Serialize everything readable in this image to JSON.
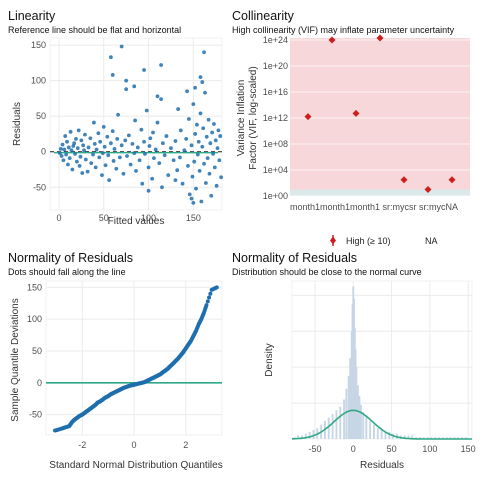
{
  "panels": {
    "linearity": {
      "title": "Linearity",
      "subtitle": "Reference line should be flat and horizontal",
      "xlabel": "Fitted values",
      "ylabel": "Residuals"
    },
    "collinearity": {
      "title": "Collinearity",
      "subtitle": "High collinearity (VIF) may inflate parameter uncertainty",
      "ylabel_line1": "Variance Inflation",
      "ylabel_line2": "Factor (VIF, log-scaled)",
      "x_ticks_text": "month1month1month1 sr:mycsr sr:mycNA",
      "legend": [
        {
          "label": "High (≥ 10)",
          "color": "#cc1f1f"
        },
        {
          "label": "NA",
          "color": "#999999"
        }
      ]
    },
    "qq": {
      "title": "Normality of Residuals",
      "subtitle": "Dots should fall along the line",
      "xlabel": "Standard Normal Distribution Quantiles",
      "ylabel": "Sample Quantile Deviations"
    },
    "density": {
      "title": "Normality of Residuals",
      "subtitle": "Distribution should be close to the normal curve",
      "xlabel": "Residuals",
      "ylabel": "Density"
    }
  },
  "colors": {
    "points": "#1f6fae",
    "reference_line": "#2ea886",
    "vif_high": "#cc1f1f",
    "vif_band": "#f7d7d9",
    "vif_low_band": "#dbe9ea",
    "histogram": "#c7d6e5",
    "grid": "#ebebeb"
  },
  "chart_data": [
    {
      "type": "scatter",
      "title": "Linearity",
      "xlabel": "Fitted values",
      "ylabel": "Residuals",
      "xlim": [
        -10,
        182
      ],
      "ylim": [
        -82,
        160
      ],
      "x_ticks": [
        0,
        50,
        100,
        150
      ],
      "y_ticks": [
        -50,
        0,
        50,
        100,
        150
      ],
      "reference_line": 0,
      "points": [
        [
          1,
          -2
        ],
        [
          2,
          4
        ],
        [
          3,
          -6
        ],
        [
          4,
          10
        ],
        [
          5,
          -12
        ],
        [
          6,
          3
        ],
        [
          7,
          22
        ],
        [
          8,
          -4
        ],
        [
          9,
          14
        ],
        [
          10,
          -18
        ],
        [
          11,
          6
        ],
        [
          12,
          -9
        ],
        [
          13,
          28
        ],
        [
          14,
          2
        ],
        [
          15,
          -25
        ],
        [
          16,
          8
        ],
        [
          17,
          12
        ],
        [
          18,
          -3
        ],
        [
          19,
          18
        ],
        [
          20,
          -14
        ],
        [
          21,
          5
        ],
        [
          22,
          30
        ],
        [
          23,
          -20
        ],
        [
          24,
          -7
        ],
        [
          25,
          16
        ],
        [
          26,
          -30
        ],
        [
          27,
          9
        ],
        [
          28,
          2
        ],
        [
          29,
          24
        ],
        [
          30,
          -11
        ],
        [
          32,
          -28
        ],
        [
          33,
          6
        ],
        [
          35,
          19
        ],
        [
          36,
          -16
        ],
        [
          38,
          -4
        ],
        [
          39,
          41
        ],
        [
          40,
          11
        ],
        [
          41,
          -22
        ],
        [
          42,
          3
        ],
        [
          44,
          26
        ],
        [
          45,
          -8
        ],
        [
          46,
          14
        ],
        [
          48,
          -33
        ],
        [
          49,
          -2
        ],
        [
          50,
          35
        ],
        [
          51,
          7
        ],
        [
          52,
          -19
        ],
        [
          54,
          21
        ],
        [
          55,
          -5
        ],
        [
          56,
          -40
        ],
        [
          58,
          12
        ],
        [
          60,
          29
        ],
        [
          61,
          -13
        ],
        [
          62,
          4
        ],
        [
          64,
          -24
        ],
        [
          65,
          18
        ],
        [
          66,
          52
        ],
        [
          68,
          -8
        ],
        [
          70,
          9
        ],
        [
          72,
          -31
        ],
        [
          74,
          16
        ],
        [
          75,
          88
        ],
        [
          76,
          -6
        ],
        [
          78,
          23
        ],
        [
          80,
          -18
        ],
        [
          82,
          11
        ],
        [
          84,
          -2
        ],
        [
          85,
          44
        ],
        [
          86,
          -27
        ],
        [
          88,
          6
        ],
        [
          90,
          -12
        ],
        [
          92,
          31
        ],
        [
          93,
          -45
        ],
        [
          95,
          14
        ],
        [
          96,
          -3
        ],
        [
          98,
          58
        ],
        [
          100,
          -22
        ],
        [
          101,
          8
        ],
        [
          102,
          19
        ],
        [
          104,
          -38
        ],
        [
          105,
          27
        ],
        [
          106,
          -9
        ],
        [
          108,
          3
        ],
        [
          110,
          41
        ],
        [
          112,
          -16
        ],
        [
          114,
          74
        ],
        [
          115,
          -50
        ],
        [
          116,
          12
        ],
        [
          118,
          -5
        ],
        [
          120,
          22
        ],
        [
          122,
          -33
        ],
        [
          125,
          5
        ],
        [
          128,
          -12
        ],
        [
          130,
          15
        ],
        [
          132,
          -26
        ],
        [
          133,
          60
        ],
        [
          135,
          -8
        ],
        [
          136,
          30
        ],
        [
          138,
          -45
        ],
        [
          140,
          2
        ],
        [
          142,
          18
        ],
        [
          144,
          -20
        ],
        [
          145,
          46
        ],
        [
          146,
          -60
        ],
        [
          148,
          9
        ],
        [
          149,
          -35
        ],
        [
          150,
          67
        ],
        [
          151,
          -14
        ],
        [
          152,
          25
        ],
        [
          153,
          -52
        ],
        [
          154,
          38
        ],
        [
          155,
          -4
        ],
        [
          156,
          14
        ],
        [
          157,
          -27
        ],
        [
          158,
          54
        ],
        [
          159,
          -70
        ],
        [
          160,
          7
        ],
        [
          161,
          33
        ],
        [
          162,
          -17
        ],
        [
          163,
          83
        ],
        [
          164,
          -44
        ],
        [
          165,
          21
        ],
        [
          166,
          -9
        ],
        [
          167,
          45
        ],
        [
          168,
          -31
        ],
        [
          169,
          12
        ],
        [
          170,
          -62
        ],
        [
          171,
          27
        ],
        [
          172,
          -3
        ],
        [
          173,
          39
        ],
        [
          174,
          -22
        ],
        [
          175,
          16
        ],
        [
          176,
          -48
        ],
        [
          177,
          5
        ],
        [
          178,
          30
        ],
        [
          179,
          -12
        ],
        [
          180,
          22
        ],
        [
          181,
          -36
        ],
        [
          143,
          85
        ],
        [
          160,
          98
        ],
        [
          158,
          105
        ],
        [
          114,
          122
        ],
        [
          95,
          115
        ],
        [
          60,
          108
        ],
        [
          58,
          133
        ],
        [
          75,
          100
        ],
        [
          70,
          148
        ],
        [
          162,
          140
        ],
        [
          84,
          92
        ],
        [
          110,
          78
        ],
        [
          130,
          -40
        ],
        [
          148,
          -66
        ],
        [
          150,
          -72
        ],
        [
          100,
          -55
        ],
        [
          152,
          90
        ]
      ]
    },
    {
      "type": "scatter",
      "title": "Collinearity",
      "ylabel": "Variance Inflation Factor (VIF, log-scaled)",
      "yscale": "log10",
      "ylim_log10": [
        0,
        24.3
      ],
      "y_ticks": [
        "1e+00",
        "1e+04",
        "1e+08",
        "1e+12",
        "1e+16",
        "1e+20",
        "1e+24"
      ],
      "y_tick_exps": [
        0,
        4,
        8,
        12,
        16,
        20,
        24
      ],
      "categories": [
        "month1",
        "month1",
        "month1",
        "month1",
        "sr:myc",
        "sr:myc",
        "NA"
      ],
      "log10_values": [
        12.2,
        24.0,
        12.7,
        24.3,
        2.5,
        1.0,
        2.5
      ]
    },
    {
      "type": "scatter",
      "title": "Normality of Residuals",
      "xlabel": "Standard Normal Distribution Quantiles",
      "ylabel": "Sample Quantile Deviations",
      "xlim": [
        -3.4,
        3.4
      ],
      "ylim": [
        -82,
        160
      ],
      "x_ticks": [
        -2,
        0,
        2
      ],
      "y_ticks": [
        -50,
        0,
        50,
        100,
        150
      ],
      "reference_line": 0,
      "points": [
        [
          -3.05,
          -75
        ],
        [
          -2.8,
          -72
        ],
        [
          -2.65,
          -70
        ],
        [
          -2.5,
          -68
        ],
        [
          -2.4,
          -62
        ],
        [
          -2.3,
          -58
        ],
        [
          -2.2,
          -55
        ],
        [
          -2.1,
          -52
        ],
        [
          -2.0,
          -50
        ],
        [
          -1.9,
          -47
        ],
        [
          -1.8,
          -44
        ],
        [
          -1.7,
          -41
        ],
        [
          -1.6,
          -38
        ],
        [
          -1.5,
          -35
        ],
        [
          -1.4,
          -31
        ],
        [
          -1.3,
          -29
        ],
        [
          -1.2,
          -26
        ],
        [
          -1.1,
          -23
        ],
        [
          -1.0,
          -21
        ],
        [
          -0.9,
          -18
        ],
        [
          -0.8,
          -16
        ],
        [
          -0.7,
          -14
        ],
        [
          -0.6,
          -12
        ],
        [
          -0.5,
          -10
        ],
        [
          -0.4,
          -8
        ],
        [
          -0.3,
          -6.5
        ],
        [
          -0.2,
          -5
        ],
        [
          -0.1,
          -4
        ],
        [
          0,
          -3
        ],
        [
          0.1,
          -2
        ],
        [
          0.2,
          -1
        ],
        [
          0.3,
          0
        ],
        [
          0.4,
          1
        ],
        [
          0.5,
          3
        ],
        [
          0.6,
          5
        ],
        [
          0.7,
          7
        ],
        [
          0.8,
          9
        ],
        [
          0.9,
          11
        ],
        [
          1.0,
          13
        ],
        [
          1.1,
          16
        ],
        [
          1.2,
          19
        ],
        [
          1.3,
          22
        ],
        [
          1.4,
          26
        ],
        [
          1.5,
          30
        ],
        [
          1.6,
          34
        ],
        [
          1.7,
          38
        ],
        [
          1.8,
          43
        ],
        [
          1.9,
          48
        ],
        [
          2.0,
          54
        ],
        [
          2.1,
          60
        ],
        [
          2.2,
          66
        ],
        [
          2.3,
          74
        ],
        [
          2.4,
          82
        ],
        [
          2.5,
          92
        ],
        [
          2.6,
          100
        ],
        [
          2.7,
          110
        ],
        [
          2.8,
          122
        ],
        [
          3.0,
          146
        ],
        [
          3.2,
          150
        ]
      ]
    },
    {
      "type": "area",
      "title": "Normality of Residuals",
      "xlabel": "Residuals",
      "ylabel": "Density",
      "xlim": [
        -80,
        155
      ],
      "x_ticks": [
        -50,
        0,
        50,
        100,
        150
      ],
      "histogram": {
        "bin_width": 2.5,
        "bins": [
          [
            -77,
            0.001
          ],
          [
            -72,
            0.002
          ],
          [
            -67,
            0.002
          ],
          [
            -62,
            0.003
          ],
          [
            -57,
            0.004
          ],
          [
            -52,
            0.005
          ],
          [
            -47,
            0.006
          ],
          [
            -42,
            0.008
          ],
          [
            -37,
            0.01
          ],
          [
            -32,
            0.012
          ],
          [
            -27,
            0.014
          ],
          [
            -22,
            0.016
          ],
          [
            -17,
            0.018
          ],
          [
            -12,
            0.022
          ],
          [
            -9,
            0.028
          ],
          [
            -6,
            0.035
          ],
          [
            -4,
            0.045
          ],
          [
            -2,
            0.06
          ],
          [
            -1,
            0.075
          ],
          [
            0,
            0.085
          ],
          [
            1,
            0.078
          ],
          [
            2,
            0.062
          ],
          [
            3,
            0.05
          ],
          [
            4,
            0.04
          ],
          [
            6,
            0.03
          ],
          [
            8,
            0.024
          ],
          [
            10,
            0.019
          ],
          [
            13,
            0.015
          ],
          [
            17,
            0.012
          ],
          [
            22,
            0.01
          ],
          [
            27,
            0.008
          ],
          [
            32,
            0.006
          ],
          [
            37,
            0.005
          ],
          [
            42,
            0.004
          ],
          [
            47,
            0.004
          ],
          [
            52,
            0.003
          ],
          [
            57,
            0.003
          ],
          [
            62,
            0.002
          ],
          [
            67,
            0.002
          ],
          [
            72,
            0.002
          ],
          [
            77,
            0.002
          ],
          [
            82,
            0.001
          ],
          [
            87,
            0.001
          ],
          [
            92,
            0.001
          ],
          [
            97,
            0.001
          ],
          [
            102,
            0.001
          ],
          [
            107,
            0.001
          ],
          [
            112,
            0.001
          ],
          [
            117,
            0.001
          ],
          [
            122,
            0.001
          ],
          [
            127,
            0.001
          ],
          [
            132,
            0.001
          ],
          [
            137,
            0.001
          ],
          [
            142,
            0.001
          ],
          [
            147,
            0.001
          ]
        ]
      },
      "normal_curve": {
        "mean": 0,
        "sd": 25
      },
      "ylim": [
        0,
        0.088
      ]
    }
  ]
}
